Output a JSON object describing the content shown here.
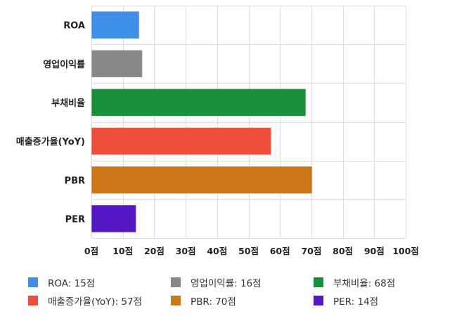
{
  "chart_data": {
    "type": "bar",
    "orientation": "horizontal",
    "categories": [
      "ROA",
      "영업이익률",
      "부채비율",
      "매출증가율(YoY)",
      "PBR",
      "PER"
    ],
    "values": [
      15,
      16,
      68,
      57,
      70,
      14
    ],
    "colors": [
      "#3d8fe8",
      "#888888",
      "#17903a",
      "#ef4f3a",
      "#cd7618",
      "#5417c4"
    ],
    "xlim": [
      0,
      100
    ],
    "x_ticks": [
      0,
      10,
      20,
      30,
      40,
      50,
      60,
      70,
      80,
      90,
      100
    ],
    "tick_labels": [
      "0점",
      "10점",
      "20점",
      "30점",
      "40점",
      "50점",
      "60점",
      "70점",
      "80점",
      "90점",
      "100점"
    ],
    "grid": true,
    "legend": {
      "position": "bottom",
      "items": [
        {
          "label": "ROA: 15점",
          "color": "#3d8fe8"
        },
        {
          "label": "영업이익률: 16점",
          "color": "#888888"
        },
        {
          "label": "부채비율: 68점",
          "color": "#17903a"
        },
        {
          "label": "매출증가율(YoY): 57점",
          "color": "#ef4f3a"
        },
        {
          "label": "PBR: 70점",
          "color": "#cd7618"
        },
        {
          "label": "PER: 14점",
          "color": "#5417c4"
        }
      ]
    }
  }
}
